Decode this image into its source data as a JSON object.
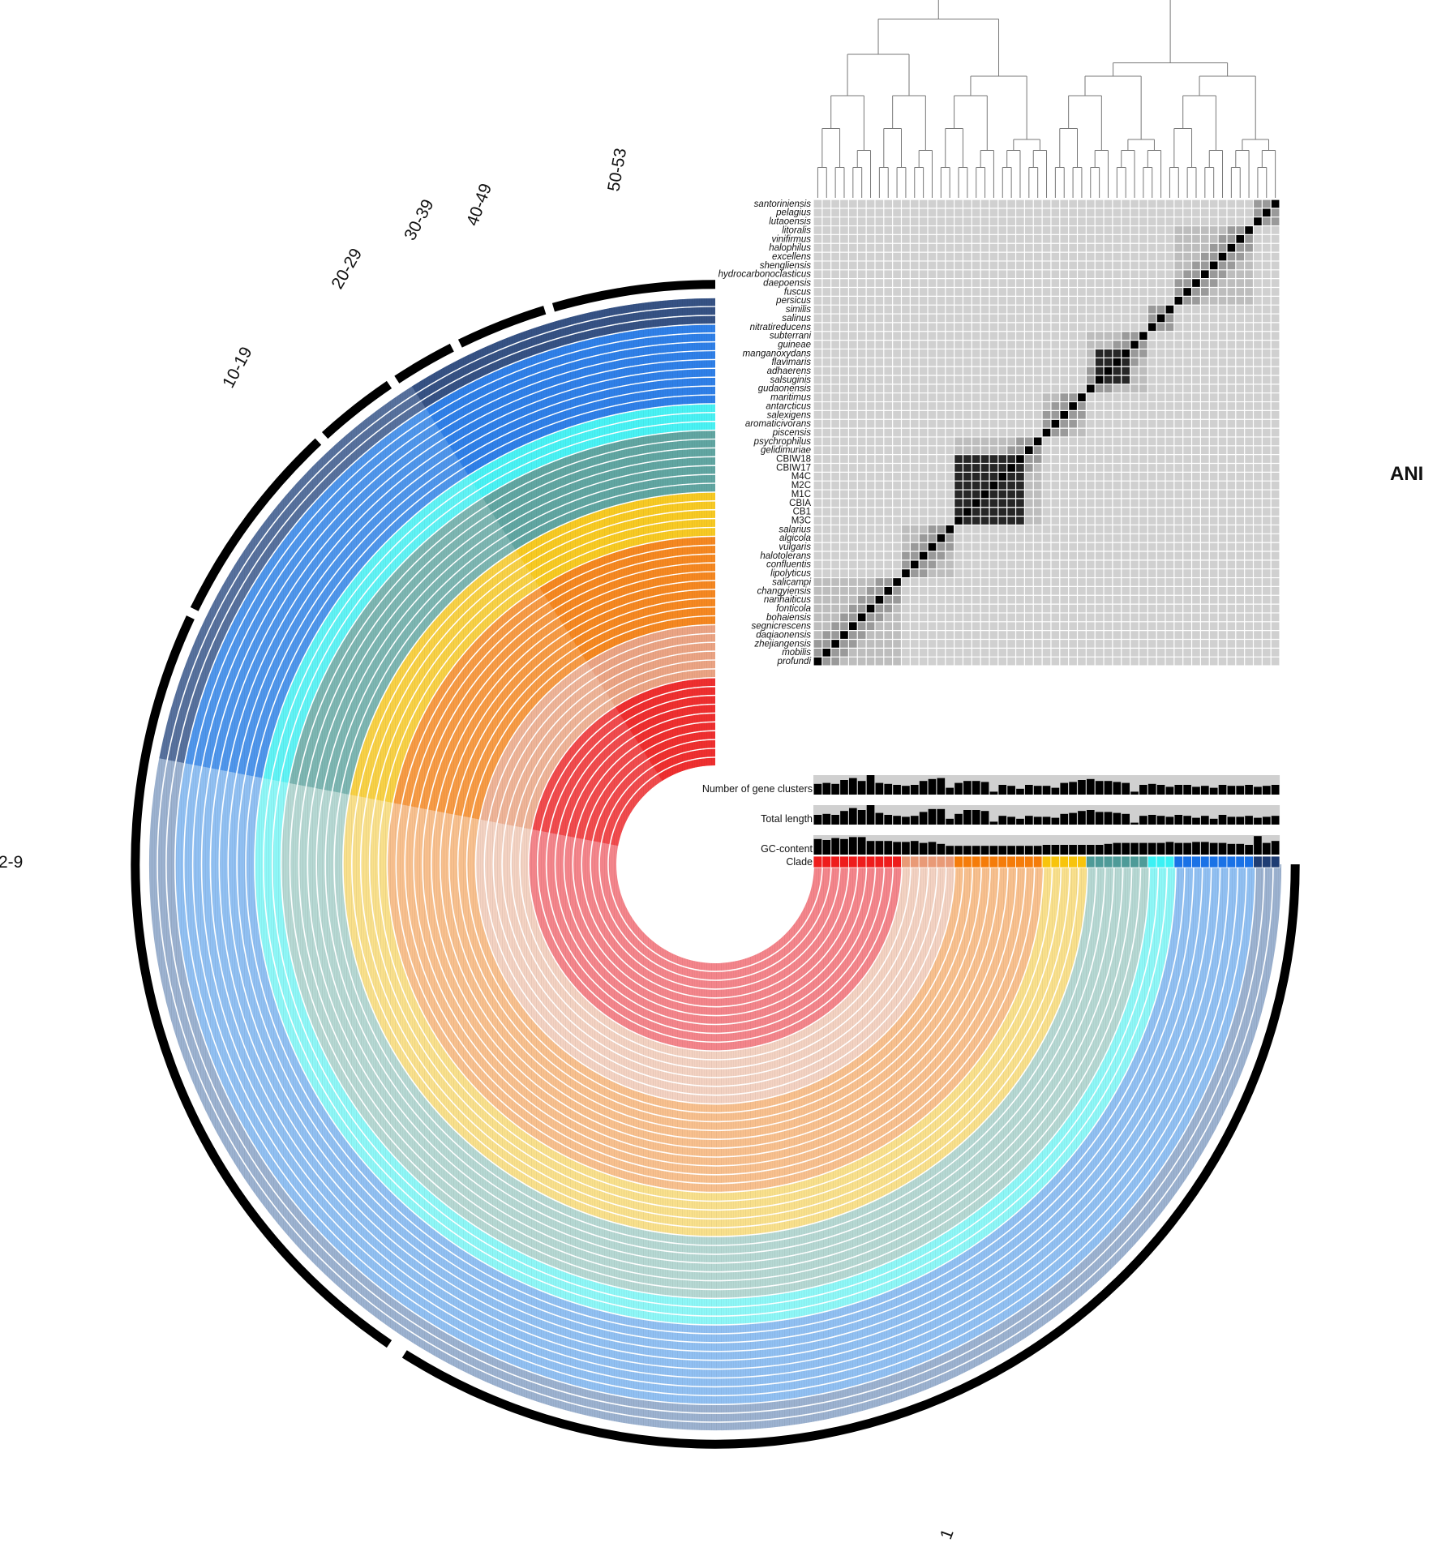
{
  "figure": {
    "ani_label": "ANI",
    "bin_labels": [
      "1",
      "2-9",
      "10-19",
      "20-29",
      "30-39",
      "40-49",
      "50-53"
    ],
    "layer_labels": {
      "gene_clusters": "Number of gene clusters",
      "total_length": "Total length",
      "gc_content": "GC-content",
      "clade": "Clade"
    }
  },
  "genomes": [
    {
      "name": "santoriniensis",
      "clade": "navy",
      "strain": false
    },
    {
      "name": "pelagius",
      "clade": "navy",
      "strain": false
    },
    {
      "name": "lutaoensis",
      "clade": "navy",
      "strain": false
    },
    {
      "name": "litoralis",
      "clade": "blue",
      "strain": false
    },
    {
      "name": "vinifirmus",
      "clade": "blue",
      "strain": false
    },
    {
      "name": "halophilus",
      "clade": "blue",
      "strain": false
    },
    {
      "name": "excellens",
      "clade": "blue",
      "strain": false
    },
    {
      "name": "shengliensis",
      "clade": "blue",
      "strain": false
    },
    {
      "name": "hydrocarbonoclasticus",
      "clade": "blue",
      "strain": false
    },
    {
      "name": "daepoensis",
      "clade": "blue",
      "strain": false
    },
    {
      "name": "fuscus",
      "clade": "blue",
      "strain": false
    },
    {
      "name": "persicus",
      "clade": "blue",
      "strain": false
    },
    {
      "name": "similis",
      "clade": "cyan",
      "strain": false
    },
    {
      "name": "salinus",
      "clade": "cyan",
      "strain": false
    },
    {
      "name": "nitratireducens",
      "clade": "cyan",
      "strain": false
    },
    {
      "name": "subterrani",
      "clade": "teal",
      "strain": false
    },
    {
      "name": "guineae",
      "clade": "teal",
      "strain": false
    },
    {
      "name": "manganoxydans",
      "clade": "teal",
      "strain": false
    },
    {
      "name": "flavimaris",
      "clade": "teal",
      "strain": false
    },
    {
      "name": "adhaerens",
      "clade": "teal",
      "strain": false
    },
    {
      "name": "salsuginis",
      "clade": "teal",
      "strain": false
    },
    {
      "name": "gudaonensis",
      "clade": "teal",
      "strain": false
    },
    {
      "name": "maritimus",
      "clade": "yellow",
      "strain": false
    },
    {
      "name": "antarcticus",
      "clade": "yellow",
      "strain": false
    },
    {
      "name": "salexigens",
      "clade": "yellow",
      "strain": false
    },
    {
      "name": "aromaticivorans",
      "clade": "yellow",
      "strain": false
    },
    {
      "name": "piscensis",
      "clade": "yellow",
      "strain": false
    },
    {
      "name": "psychrophilus",
      "clade": "orange",
      "strain": false
    },
    {
      "name": "gelidimuriae",
      "clade": "orange",
      "strain": false
    },
    {
      "name": "CBIW18",
      "clade": "orange",
      "strain": true
    },
    {
      "name": "CBIW17",
      "clade": "orange",
      "strain": true
    },
    {
      "name": "M4C",
      "clade": "orange",
      "strain": true
    },
    {
      "name": "M2C",
      "clade": "orange",
      "strain": true
    },
    {
      "name": "M1C",
      "clade": "orange",
      "strain": true
    },
    {
      "name": "CBIA",
      "clade": "orange",
      "strain": true
    },
    {
      "name": "CB1",
      "clade": "orange",
      "strain": true
    },
    {
      "name": "M3C",
      "clade": "orange",
      "strain": true
    },
    {
      "name": "salarius",
      "clade": "salmon",
      "strain": false
    },
    {
      "name": "algicola",
      "clade": "salmon",
      "strain": false
    },
    {
      "name": "vulgaris",
      "clade": "salmon",
      "strain": false
    },
    {
      "name": "halotolerans",
      "clade": "salmon",
      "strain": false
    },
    {
      "name": "confluentis",
      "clade": "salmon",
      "strain": false
    },
    {
      "name": "lipolyticus",
      "clade": "salmon",
      "strain": false
    },
    {
      "name": "salicampi",
      "clade": "red",
      "strain": false
    },
    {
      "name": "changyiensis",
      "clade": "red",
      "strain": false
    },
    {
      "name": "nanhaiticus",
      "clade": "red",
      "strain": false
    },
    {
      "name": "fonticola",
      "clade": "red",
      "strain": false
    },
    {
      "name": "bohaiensis",
      "clade": "red",
      "strain": false
    },
    {
      "name": "segnicrescens",
      "clade": "red",
      "strain": false
    },
    {
      "name": "daqiaonensis",
      "clade": "red",
      "strain": false
    },
    {
      "name": "zhejiangensis",
      "clade": "red",
      "strain": false
    },
    {
      "name": "mobilis",
      "clade": "red",
      "strain": false
    },
    {
      "name": "profundi",
      "clade": "red",
      "strain": false
    }
  ],
  "clade_colors": {
    "red": "#ee1c1c",
    "salmon": "#e99a77",
    "orange": "#f57c0a",
    "yellow": "#f8c40c",
    "teal": "#4e9b98",
    "cyan": "#3bf1f4",
    "blue": "#1a72e6",
    "navy": "#1f3d73"
  },
  "ring_tints": {
    "red": "#f4858b",
    "salmon": "#f3d2c2",
    "orange": "#f8c08e",
    "yellow": "#f9e08c",
    "teal": "#b6d8d3",
    "cyan": "#8ef7f7",
    "blue": "#91c0f2",
    "navy": "#9cb2d0"
  },
  "ani_high_blocks": [
    [
      17,
      20
    ],
    [
      29,
      36
    ]
  ],
  "gene_clusters": [
    0.55,
    0.6,
    0.55,
    0.75,
    0.85,
    0.7,
    1.0,
    0.6,
    0.55,
    0.5,
    0.45,
    0.5,
    0.7,
    0.8,
    0.85,
    0.35,
    0.6,
    0.7,
    0.7,
    0.65,
    0.15,
    0.5,
    0.45,
    0.3,
    0.5,
    0.45,
    0.45,
    0.35,
    0.6,
    0.65,
    0.75,
    0.8,
    0.7,
    0.7,
    0.65,
    0.6,
    0.15,
    0.5,
    0.55,
    0.5,
    0.4,
    0.5,
    0.5,
    0.4,
    0.45,
    0.35,
    0.5,
    0.45,
    0.45,
    0.5,
    0.4,
    0.45,
    0.5
  ],
  "total_length": [
    0.5,
    0.55,
    0.5,
    0.7,
    0.85,
    0.75,
    1.0,
    0.6,
    0.5,
    0.45,
    0.4,
    0.45,
    0.65,
    0.8,
    0.8,
    0.3,
    0.55,
    0.75,
    0.75,
    0.7,
    0.15,
    0.45,
    0.4,
    0.3,
    0.45,
    0.4,
    0.4,
    0.35,
    0.55,
    0.6,
    0.7,
    0.75,
    0.65,
    0.65,
    0.6,
    0.55,
    0.1,
    0.45,
    0.5,
    0.45,
    0.4,
    0.5,
    0.45,
    0.35,
    0.45,
    0.3,
    0.5,
    0.4,
    0.4,
    0.45,
    0.35,
    0.4,
    0.45
  ],
  "gc_content": [
    0.8,
    0.75,
    0.85,
    0.8,
    0.9,
    0.9,
    0.7,
    0.7,
    0.7,
    0.65,
    0.65,
    0.7,
    0.6,
    0.65,
    0.55,
    0.45,
    0.45,
    0.45,
    0.45,
    0.45,
    0.45,
    0.45,
    0.45,
    0.45,
    0.45,
    0.45,
    0.5,
    0.5,
    0.5,
    0.5,
    0.5,
    0.5,
    0.5,
    0.55,
    0.6,
    0.6,
    0.6,
    0.6,
    0.6,
    0.6,
    0.65,
    0.6,
    0.6,
    0.65,
    0.65,
    0.6,
    0.6,
    0.55,
    0.55,
    0.5,
    0.95,
    0.6,
    0.7
  ]
}
